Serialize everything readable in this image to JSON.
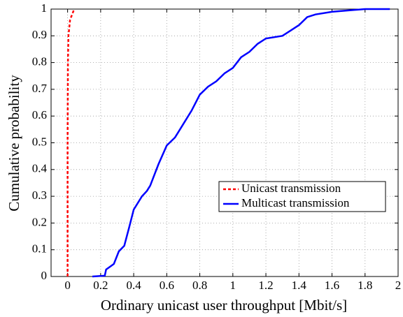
{
  "chart_data": {
    "type": "line",
    "xlabel": "Ordinary unicast user throughput [Mbit/s]",
    "ylabel": "Cumulative probability",
    "xlim": [
      -0.1,
      2
    ],
    "xticks": [
      0,
      0.2,
      0.4,
      0.6,
      0.8,
      1,
      1.2,
      1.4,
      1.6,
      1.8,
      2
    ],
    "ylim": [
      0,
      1
    ],
    "yticks": [
      0,
      0.1,
      0.2,
      0.3,
      0.4,
      0.5,
      0.6,
      0.7,
      0.8,
      0.9,
      1
    ],
    "grid": true,
    "legend": "center right",
    "series": [
      {
        "name": "Unicast transmission",
        "color": "#ff0000",
        "dash": true,
        "x": [
          0,
          0,
          0.002,
          0.005,
          0.015,
          0.04
        ],
        "values": [
          0,
          0.5,
          0.8,
          0.9,
          0.96,
          1
        ]
      },
      {
        "name": "Multicast transmission",
        "color": "#0000ff",
        "dash": false,
        "x": [
          0.15,
          0.225,
          0.233,
          0.28,
          0.31,
          0.343,
          0.373,
          0.4,
          0.45,
          0.48,
          0.5,
          0.55,
          0.6,
          0.65,
          0.7,
          0.75,
          0.8,
          0.85,
          0.9,
          0.95,
          1.0,
          1.05,
          1.1,
          1.15,
          1.2,
          1.3,
          1.35,
          1.4,
          1.45,
          1.5,
          1.6,
          1.8,
          1.95
        ],
        "values": [
          0,
          0.003,
          0.026,
          0.047,
          0.094,
          0.115,
          0.185,
          0.25,
          0.3,
          0.32,
          0.34,
          0.42,
          0.49,
          0.52,
          0.57,
          0.62,
          0.68,
          0.71,
          0.73,
          0.76,
          0.78,
          0.82,
          0.84,
          0.87,
          0.89,
          0.9,
          0.92,
          0.94,
          0.97,
          0.98,
          0.99,
          1.0,
          1.0
        ]
      }
    ]
  }
}
